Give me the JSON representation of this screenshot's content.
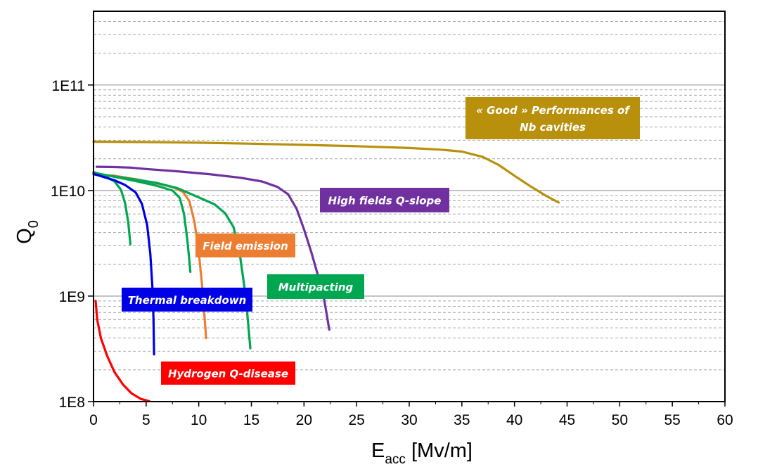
{
  "chart_data": {
    "type": "line",
    "title": "",
    "xlabel_main": "E",
    "xlabel_sub": "acc",
    "xlabel_rest": " [Mv/m]",
    "ylabel_main": "Q",
    "ylabel_sub": "0",
    "xlim": [
      0,
      60
    ],
    "ylim": [
      100000000,
      500000000000
    ],
    "y_scale": "log",
    "x_ticks": [
      0,
      5,
      10,
      15,
      20,
      25,
      30,
      35,
      40,
      45,
      50,
      55,
      60
    ],
    "x_tick_labels": [
      "0",
      "5",
      "10",
      "15",
      "20",
      "25",
      "30",
      "35",
      "40",
      "45",
      "50",
      "55",
      "60"
    ],
    "y_ticks": [
      100000000,
      1000000000,
      10000000000,
      100000000000
    ],
    "y_tick_labels": [
      "1E8",
      "1E9",
      "1E10",
      "1E11"
    ],
    "grid": "horizontal, solid at decades and dashed minor",
    "series": [
      {
        "color": "#b8900b",
        "points": [
          [
            0,
            29000000000
          ],
          [
            5,
            28800000000
          ],
          [
            10,
            28400000000
          ],
          [
            15,
            27800000000
          ],
          [
            20,
            27100000000
          ],
          [
            25,
            26300000000
          ],
          [
            30,
            25300000000
          ],
          [
            33,
            24400000000
          ],
          [
            35,
            23400000000
          ],
          [
            37,
            20800000000
          ],
          [
            38.5,
            17500000000
          ],
          [
            40,
            13800000000
          ],
          [
            41.5,
            11000000000
          ],
          [
            43,
            8900000000
          ],
          [
            44.2,
            7700000000
          ]
        ]
      },
      {
        "color": "#7030a0",
        "points": [
          [
            0.3,
            16800000000
          ],
          [
            2,
            16700000000
          ],
          [
            3.5,
            16500000000
          ],
          [
            5,
            16000000000
          ],
          [
            8,
            15200000000
          ],
          [
            11,
            14300000000
          ],
          [
            14,
            13200000000
          ],
          [
            16,
            12200000000
          ],
          [
            17.5,
            10800000000
          ],
          [
            18.5,
            9200000000
          ],
          [
            19.3,
            6700000000
          ],
          [
            20,
            4300000000
          ],
          [
            20.7,
            2600000000
          ],
          [
            21.3,
            1600000000
          ],
          [
            21.9,
            950000000
          ],
          [
            22.4,
            480000000
          ]
        ]
      },
      {
        "color": "#ed7d31",
        "points": [
          [
            0,
            14200000000
          ],
          [
            2,
            13800000000
          ],
          [
            4,
            12800000000
          ],
          [
            6,
            11700000000
          ],
          [
            7.5,
            10800000000
          ],
          [
            8.5,
            9700000000
          ],
          [
            9.1,
            8000000000
          ],
          [
            9.6,
            5000000000
          ],
          [
            10,
            2600000000
          ],
          [
            10.3,
            1300000000
          ],
          [
            10.5,
            750000000
          ],
          [
            10.7,
            400000000
          ]
        ]
      },
      {
        "color": "#00a650",
        "points": [
          [
            0,
            14500000000
          ],
          [
            2,
            13600000000
          ],
          [
            4,
            12700000000
          ],
          [
            6,
            11800000000
          ],
          [
            8,
            10500000000
          ],
          [
            10,
            8600000000
          ],
          [
            11.5,
            7400000000
          ],
          [
            12.5,
            6100000000
          ],
          [
            13.3,
            4500000000
          ],
          [
            13.9,
            2500000000
          ],
          [
            14.3,
            1300000000
          ],
          [
            14.6,
            700000000
          ],
          [
            14.9,
            320000000
          ]
        ]
      },
      {
        "color": "#00a650",
        "points": [
          [
            0,
            14800000000
          ],
          [
            2,
            13500000000
          ],
          [
            4,
            12300000000
          ],
          [
            6,
            11100000000
          ],
          [
            7.5,
            10000000000
          ],
          [
            8.2,
            8500000000
          ],
          [
            8.6,
            6000000000
          ],
          [
            8.9,
            3500000000
          ],
          [
            9.1,
            2200000000
          ],
          [
            9.2,
            1700000000
          ]
        ]
      },
      {
        "color": "#00a650",
        "points": [
          [
            0,
            15000000000
          ],
          [
            1,
            13800000000
          ],
          [
            2,
            12200000000
          ],
          [
            2.6,
            10200000000
          ],
          [
            3,
            7600000000
          ],
          [
            3.3,
            5000000000
          ],
          [
            3.5,
            3100000000
          ]
        ]
      },
      {
        "color": "#0000e6",
        "points": [
          [
            0,
            14400000000
          ],
          [
            1,
            13400000000
          ],
          [
            2,
            12500000000
          ],
          [
            3,
            11300000000
          ],
          [
            4,
            9600000000
          ],
          [
            4.6,
            7500000000
          ],
          [
            5.1,
            4700000000
          ],
          [
            5.4,
            2500000000
          ],
          [
            5.6,
            1200000000
          ],
          [
            5.7,
            600000000
          ],
          [
            5.75,
            280000000
          ]
        ]
      },
      {
        "color": "#ff0000",
        "points": [
          [
            0.2,
            900000000
          ],
          [
            0.35,
            600000000
          ],
          [
            0.7,
            400000000
          ],
          [
            1.3,
            270000000
          ],
          [
            2,
            190000000
          ],
          [
            2.8,
            145000000
          ],
          [
            3.6,
            120000000
          ],
          [
            4.5,
            106000000
          ],
          [
            5.3,
            101000000
          ]
        ]
      }
    ],
    "annotations": [
      {
        "text": "« Good » Performances of",
        "text2": "Nb cavities",
        "color": "#b8900b"
      },
      {
        "text": "High fields Q-slope",
        "color": "#7030a0"
      },
      {
        "text": "Field emission",
        "color": "#ed7d31"
      },
      {
        "text": "Multipacting",
        "color": "#00a650"
      },
      {
        "text": "Thermal breakdown",
        "color": "#0000e6"
      },
      {
        "text": "Hydrogen Q-disease",
        "color": "#ff0000"
      }
    ]
  }
}
